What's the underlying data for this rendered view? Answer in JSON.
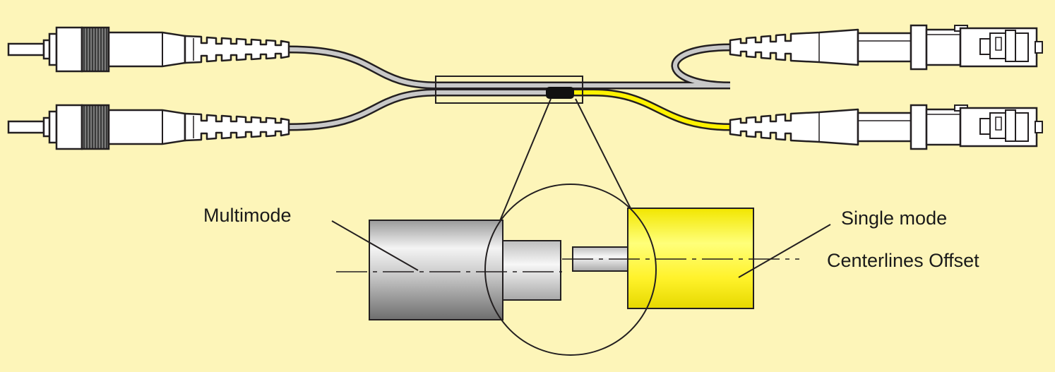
{
  "labels": {
    "multimode": "Multimode",
    "single_mode": "Single mode",
    "centerlines_offset": "Centerlines Offset"
  },
  "colors": {
    "background": "#FDF5B9",
    "single_mode_fiber": "#FFF200",
    "multimode_fiber": "#C8C8C8",
    "outline": "#231F20"
  }
}
